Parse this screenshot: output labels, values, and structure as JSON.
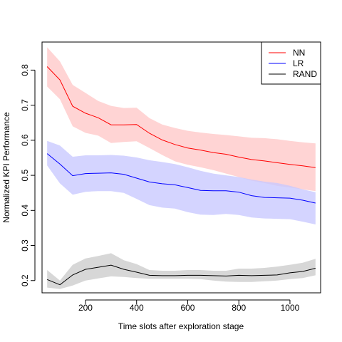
{
  "chart_data": {
    "type": "line",
    "title": "",
    "xlabel": "Time slots after exploration stage",
    "ylabel": "Normalized KPI Performance",
    "xlim": [
      30,
      1120
    ],
    "ylim": [
      0.165,
      0.88
    ],
    "x_ticks": [
      200,
      400,
      600,
      800,
      1000
    ],
    "y_ticks": [
      0.2,
      0.3,
      0.4,
      0.5,
      0.6,
      0.7,
      0.8
    ],
    "grid": false,
    "legend_position": "top-right",
    "x": [
      50,
      100,
      150,
      200,
      250,
      300,
      350,
      400,
      450,
      500,
      550,
      600,
      650,
      700,
      750,
      800,
      850,
      900,
      950,
      1000,
      1050,
      1100
    ],
    "series": [
      {
        "name": "NN",
        "line_color": "#ff0000",
        "band_color": "#ffc8c8",
        "values": [
          0.81,
          0.772,
          0.697,
          0.677,
          0.664,
          0.644,
          0.644,
          0.645,
          0.62,
          0.601,
          0.588,
          0.578,
          0.572,
          0.565,
          0.56,
          0.552,
          0.545,
          0.541,
          0.536,
          0.531,
          0.527,
          0.522
        ],
        "upper": [
          0.865,
          0.825,
          0.758,
          0.735,
          0.712,
          0.698,
          0.692,
          0.693,
          0.663,
          0.645,
          0.635,
          0.627,
          0.622,
          0.618,
          0.615,
          0.611,
          0.607,
          0.606,
          0.603,
          0.598,
          0.594,
          0.591
        ],
        "lower": [
          0.753,
          0.717,
          0.64,
          0.621,
          0.613,
          0.592,
          0.595,
          0.597,
          0.578,
          0.558,
          0.54,
          0.53,
          0.523,
          0.515,
          0.505,
          0.495,
          0.485,
          0.478,
          0.47,
          0.465,
          0.46,
          0.455
        ]
      },
      {
        "name": "LR",
        "line_color": "#0000ff",
        "band_color": "#c8c8ff",
        "values": [
          0.562,
          0.532,
          0.499,
          0.505,
          0.506,
          0.507,
          0.503,
          0.492,
          0.481,
          0.476,
          0.473,
          0.465,
          0.457,
          0.456,
          0.456,
          0.452,
          0.442,
          0.437,
          0.436,
          0.435,
          0.429,
          0.421
        ],
        "upper": [
          0.598,
          0.585,
          0.553,
          0.557,
          0.557,
          0.558,
          0.556,
          0.551,
          0.543,
          0.538,
          0.532,
          0.523,
          0.513,
          0.505,
          0.5,
          0.495,
          0.488,
          0.482,
          0.478,
          0.47,
          0.46,
          0.452
        ],
        "lower": [
          0.528,
          0.477,
          0.445,
          0.453,
          0.455,
          0.455,
          0.45,
          0.433,
          0.415,
          0.408,
          0.405,
          0.395,
          0.388,
          0.387,
          0.39,
          0.387,
          0.38,
          0.377,
          0.376,
          0.375,
          0.368,
          0.36
        ]
      },
      {
        "name": "RAND",
        "line_color": "#000000",
        "band_color": "#cccccc",
        "values": [
          0.203,
          0.188,
          0.216,
          0.232,
          0.238,
          0.244,
          0.232,
          0.224,
          0.215,
          0.214,
          0.214,
          0.215,
          0.215,
          0.214,
          0.213,
          0.215,
          0.214,
          0.215,
          0.216,
          0.222,
          0.226,
          0.235
        ],
        "upper": [
          0.23,
          0.2,
          0.245,
          0.263,
          0.27,
          0.278,
          0.258,
          0.247,
          0.23,
          0.228,
          0.228,
          0.23,
          0.23,
          0.228,
          0.228,
          0.234,
          0.234,
          0.236,
          0.24,
          0.245,
          0.251,
          0.262
        ],
        "lower": [
          0.18,
          0.176,
          0.186,
          0.2,
          0.206,
          0.212,
          0.21,
          0.207,
          0.205,
          0.205,
          0.205,
          0.205,
          0.204,
          0.2,
          0.197,
          0.196,
          0.196,
          0.198,
          0.2,
          0.204,
          0.207,
          0.215
        ]
      }
    ]
  }
}
